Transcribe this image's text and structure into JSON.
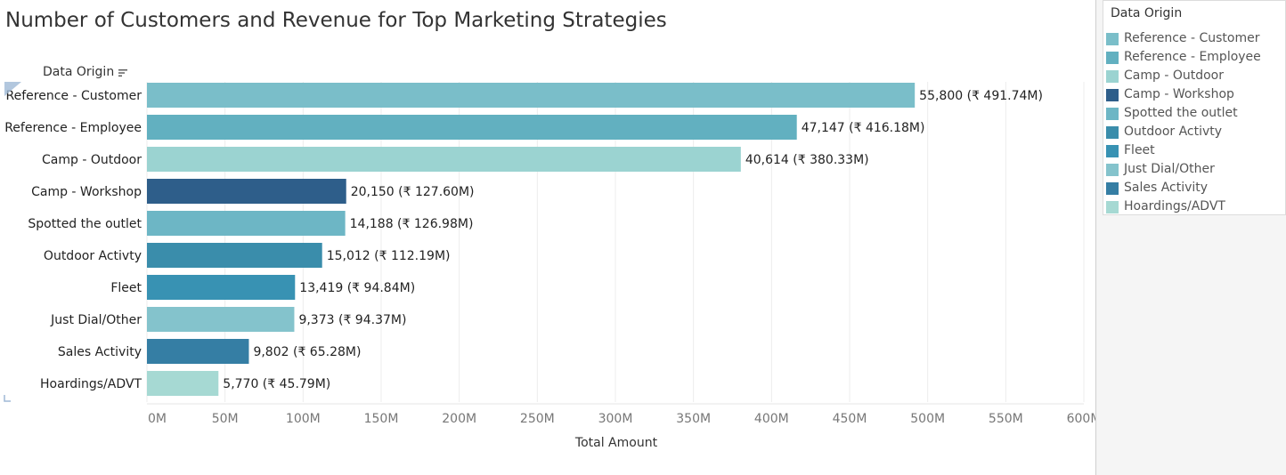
{
  "title": "Number of Customers and Revenue for Top Marketing Strategies",
  "sort_header": "Data Origin",
  "legend": {
    "title": "Data Origin",
    "items": [
      {
        "label": "Reference - Customer",
        "color": "#7abec9"
      },
      {
        "label": "Reference - Employee",
        "color": "#62b0c0"
      },
      {
        "label": "Camp - Outdoor",
        "color": "#9bd3d1"
      },
      {
        "label": "Camp - Workshop",
        "color": "#2e5e8a"
      },
      {
        "label": "Spotted the outlet",
        "color": "#6db6c5"
      },
      {
        "label": "Outdoor Activty",
        "color": "#3a8dab"
      },
      {
        "label": "Fleet",
        "color": "#3892b3"
      },
      {
        "label": "Just Dial/Other",
        "color": "#84c3cc"
      },
      {
        "label": "Sales Activity",
        "color": "#357ea4"
      },
      {
        "label": "Hoardings/ADVT",
        "color": "#a6d9d3"
      }
    ]
  },
  "chart_data": {
    "type": "bar",
    "orientation": "horizontal",
    "categories": [
      "Reference - Customer",
      "Reference - Employee",
      "Camp - Outdoor",
      "Camp - Workshop",
      "Spotted the outlet",
      "Outdoor Activty",
      "Fleet",
      "Just Dial/Other",
      "Sales Activity",
      "Hoardings/ADVT"
    ],
    "values": [
      491.74,
      416.18,
      380.33,
      127.6,
      126.98,
      112.19,
      94.84,
      94.37,
      65.28,
      45.79
    ],
    "value_unit": "M",
    "data_labels": [
      "55,800  (₹ 491.74M)",
      "47,147  (₹ 416.18M)",
      "40,614  (₹ 380.33M)",
      "20,150  (₹ 127.60M)",
      "14,188  (₹ 126.98M)",
      "15,012  (₹ 112.19M)",
      "13,419  (₹ 94.84M)",
      "9,373  (₹ 94.37M)",
      "9,802  (₹ 65.28M)",
      "5,770  (₹ 45.79M)"
    ],
    "colors": [
      "#7abec9",
      "#62b0c0",
      "#9bd3d1",
      "#2e5e8a",
      "#6db6c5",
      "#3a8dab",
      "#3892b3",
      "#84c3cc",
      "#357ea4",
      "#a6d9d3"
    ],
    "xlabel": "Total Amount",
    "xlim": [
      0,
      600
    ],
    "xticks": [
      0,
      50,
      100,
      150,
      200,
      250,
      300,
      350,
      400,
      450,
      500,
      550,
      600
    ],
    "xtick_labels": [
      "0M",
      "50M",
      "100M",
      "150M",
      "200M",
      "250M",
      "300M",
      "350M",
      "400M",
      "450M",
      "500M",
      "550M",
      "600M"
    ],
    "grid": true,
    "legend_position": "right"
  }
}
